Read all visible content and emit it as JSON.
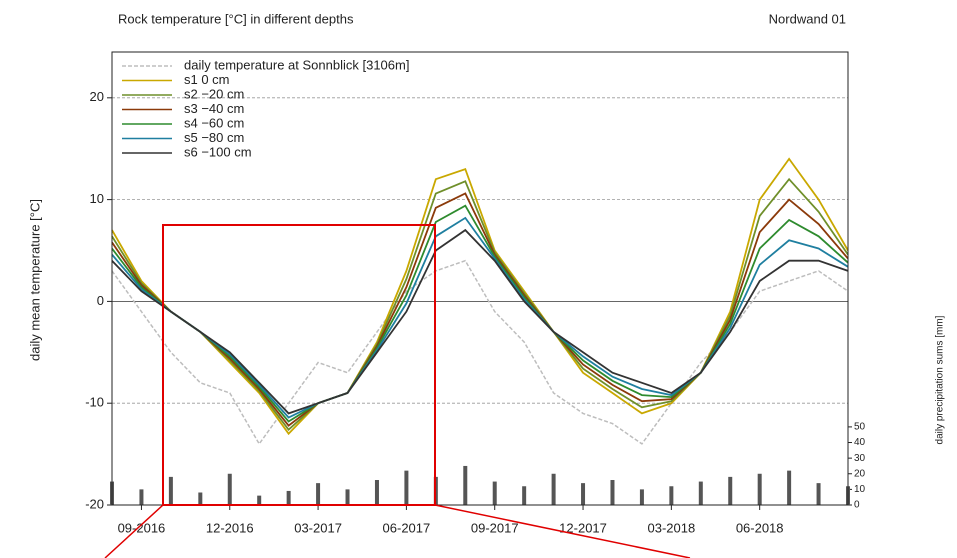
{
  "chart_data": {
    "type": "line",
    "title": "Rock temperature [°C] in different depths",
    "subtitle": "Nordwand 01",
    "y_label": "daily mean temperature [°C]",
    "y2_label": "daily precipitation sums [mm]",
    "x": [
      "08-2016",
      "09-2016",
      "10-2016",
      "11-2016",
      "12-2016",
      "01-2017",
      "02-2017",
      "03-2017",
      "04-2017",
      "05-2017",
      "06-2017",
      "07-2017",
      "08-2017",
      "09-2017",
      "10-2017",
      "11-2017",
      "12-2017",
      "01-2018",
      "02-2018",
      "03-2018",
      "04-2018",
      "05-2018",
      "06-2018",
      "07-2018",
      "08-2018",
      "09-2018"
    ],
    "xlim": [
      "08-2016",
      "09-2018"
    ],
    "xticks": [
      "09-2016",
      "12-2016",
      "03-2017",
      "06-2017",
      "09-2017",
      "12-2017",
      "03-2018",
      "06-2018"
    ],
    "ylim": [
      -20,
      24.5
    ],
    "yticks": [
      -20,
      -10,
      0,
      10,
      20
    ],
    "y2lim": [
      0,
      290
    ],
    "y2ticks": [
      0,
      10,
      20,
      30,
      40,
      50
    ],
    "grid": true,
    "legend": "upper left",
    "series": [
      {
        "name": "daily temperature at Sonnblick [3106m]",
        "color": "#bdbdbd",
        "dashed": true,
        "values": [
          3,
          -1,
          -5,
          -8,
          -9,
          -14,
          -10,
          -6,
          -7,
          -3,
          1,
          3,
          4,
          -1,
          -4,
          -9,
          -11,
          -12,
          -14,
          -10,
          -6,
          -3,
          1,
          2,
          3,
          1
        ]
      },
      {
        "name": "s1 0 cm",
        "color": "#c9a800",
        "values": [
          7,
          2,
          -1,
          -3,
          -6,
          -9,
          -13,
          -10,
          -9,
          -4,
          3,
          12,
          13,
          5,
          1,
          -3,
          -7,
          -9,
          -11,
          -10,
          -7,
          -1,
          10,
          14,
          10,
          5
        ]
      },
      {
        "name": "s2 −20 cm",
        "color": "#6f8f2a",
        "values": [
          6.4,
          1.8,
          -1,
          -3,
          -5.8,
          -8.8,
          -12.6,
          -10,
          -9,
          -4.2,
          2.2,
          10.6,
          11.8,
          4.8,
          0.8,
          -3,
          -6.6,
          -8.6,
          -10.4,
          -9.8,
          -7,
          -1.4,
          8.4,
          12,
          8.8,
          4.6
        ]
      },
      {
        "name": "s3 −40 cm",
        "color": "#8b3a0a",
        "values": [
          5.8,
          1.6,
          -1,
          -3,
          -5.6,
          -8.6,
          -12.2,
          -10,
          -9,
          -4.4,
          1.4,
          9.2,
          10.6,
          4.6,
          0.6,
          -3,
          -6.2,
          -8.2,
          -9.8,
          -9.6,
          -7,
          -1.8,
          6.8,
          10,
          7.6,
          4.2
        ]
      },
      {
        "name": "s4 −60 cm",
        "color": "#2e8b2e",
        "values": [
          5.2,
          1.4,
          -1,
          -3,
          -5.4,
          -8.4,
          -11.8,
          -10,
          -9,
          -4.6,
          0.6,
          7.8,
          9.4,
          4.4,
          0.4,
          -3,
          -5.8,
          -7.8,
          -9.2,
          -9.4,
          -7,
          -2.2,
          5.2,
          8,
          6.4,
          3.8
        ]
      },
      {
        "name": "s5 −80 cm",
        "color": "#1f7fa0",
        "values": [
          4.6,
          1.2,
          -1,
          -3,
          -5.2,
          -8.2,
          -11.4,
          -10,
          -9,
          -4.8,
          -0.2,
          6.4,
          8.2,
          4.2,
          0.2,
          -3,
          -5.4,
          -7.4,
          -8.6,
          -9.2,
          -7,
          -2.6,
          3.6,
          6,
          5.2,
          3.4
        ]
      },
      {
        "name": "s6 −100 cm",
        "color": "#333333",
        "values": [
          4,
          1,
          -1,
          -3,
          -5,
          -8,
          -11,
          -10,
          -9,
          -5,
          -1,
          5,
          7,
          4,
          0,
          -3,
          -5,
          -7,
          -8,
          -9,
          -7,
          -3,
          2,
          4,
          4,
          3
        ]
      },
      {
        "name": "precipitation",
        "type": "bar",
        "axis": "y2",
        "color": "#555555",
        "values": [
          15,
          10,
          18,
          8,
          20,
          6,
          9,
          14,
          10,
          16,
          22,
          18,
          25,
          15,
          12,
          20,
          14,
          16,
          10,
          12,
          15,
          18,
          20,
          22,
          14,
          12
        ]
      }
    ]
  }
}
